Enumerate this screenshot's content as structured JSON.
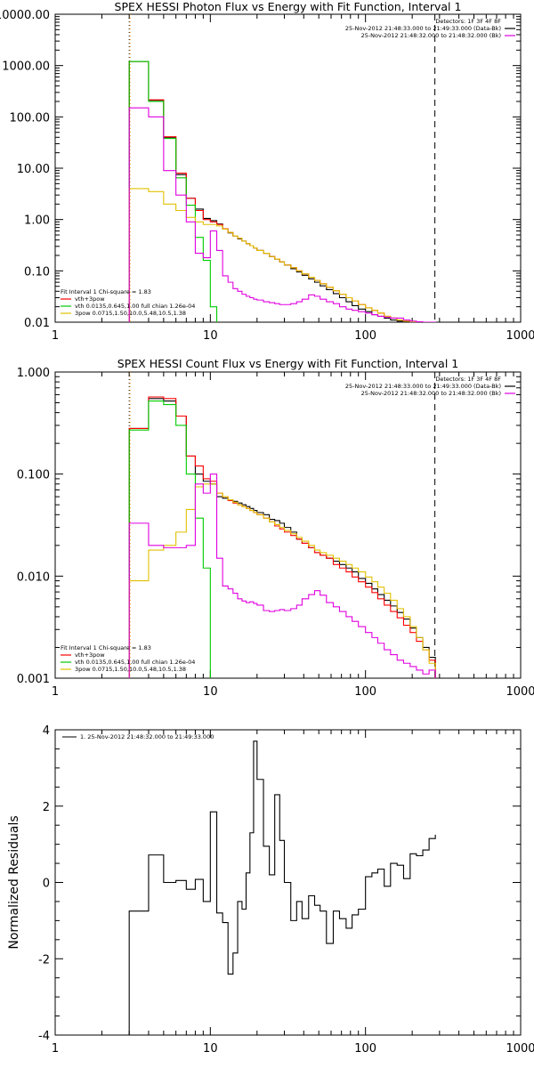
{
  "colors": {
    "background": "#ffffff",
    "axes": "#000000",
    "total": "#000000",
    "background_series": "#e000e0",
    "model": "#ff0000",
    "vth": "#00cc00",
    "powerlaw": "#e0c000",
    "marker_start": "#ff8c00"
  },
  "chart_data": [
    {
      "type": "line",
      "name": "photon-flux",
      "title": "SPEX HESSI Photon Flux vs Energy with Fit Function, Interval 1",
      "xlabel": "",
      "ylabel": "",
      "xlog": true,
      "ylog": true,
      "xlim": [
        1,
        1000
      ],
      "ylim": [
        0.01,
        10000
      ],
      "xticks": [
        1,
        10,
        100,
        1000
      ],
      "xtick_labels": [
        "1",
        "10",
        "100",
        "1000"
      ],
      "yticks": [
        0.01,
        0.1,
        1,
        10,
        100,
        1000,
        10000
      ],
      "ytick_labels": [
        "0.01",
        "0.10",
        "1.00",
        "10.00",
        "100.00",
        "1000.00",
        "10000.00"
      ],
      "vlines": [
        {
          "x": 3,
          "style": "dotted",
          "color": "#000000"
        },
        {
          "x": 3,
          "style": "dotted",
          "color": "#ff8c00"
        },
        {
          "x": 280,
          "style": "dashed",
          "color": "#000000"
        }
      ],
      "legend_top": [
        "Detectors: 1F 3F 4F 8F",
        "25-Nov-2012 21:48:33.000 to 21:49:33.000 (Data-Bk)",
        "25-Nov-2012 21:48:32.000 to 21:48:32.000 (Bk)"
      ],
      "legend_top_colors": [
        "#000000",
        "#000000",
        "#e000e0"
      ],
      "legend_bottom": [
        "Fit Interval 1    Chi-square = 1.83",
        "vth+3pow",
        "vth 0.0135,0.645,1.00  full chian 1.26e-04",
        "3pow 0.0715,1.50,10.0,5.48,10.5,1.38"
      ],
      "legend_bottom_colors": [
        "#000000",
        "#ff0000",
        "#00cc00",
        "#e0c000"
      ],
      "edges": [
        3,
        4,
        5,
        6,
        7,
        8,
        9,
        10,
        11,
        12,
        13,
        14,
        15,
        16,
        17,
        18,
        19,
        20,
        22,
        24,
        26,
        28,
        30,
        33,
        36,
        39,
        43,
        47,
        51,
        56,
        62,
        68,
        75,
        82,
        90,
        100,
        110,
        120,
        132,
        145,
        160,
        176,
        194,
        213,
        234,
        257,
        282
      ],
      "series": [
        {
          "key": "total",
          "color": "#000000",
          "values": [
            1200,
            210,
            40,
            7.5,
            2.6,
            1.6,
            1.05,
            0.95,
            0.82,
            0.65,
            0.55,
            0.48,
            0.42,
            0.38,
            0.34,
            0.31,
            0.28,
            0.25,
            0.22,
            0.19,
            0.17,
            0.15,
            0.13,
            0.11,
            0.095,
            0.082,
            0.07,
            0.06,
            0.051,
            0.043,
            0.036,
            0.03,
            0.025,
            0.021,
            0.018,
            0.016,
            0.014,
            0.013,
            0.012,
            0.011,
            0.0105,
            0.0102,
            0.0101,
            0.01,
            0.01,
            0.01
          ]
        },
        {
          "key": "model",
          "color": "#ff0000",
          "values": [
            1200,
            215,
            41,
            8,
            2.6,
            1.5,
            1.0,
            0.9,
            0.8,
            0.66,
            0.56,
            0.48,
            0.43,
            0.38,
            0.34,
            0.31,
            0.28,
            0.25,
            0.22,
            0.19,
            0.17,
            0.15,
            0.13,
            0.115,
            0.1,
            0.087,
            0.075,
            0.065,
            0.056,
            0.048,
            0.041,
            0.035,
            0.03,
            0.026,
            0.022,
            0.019,
            0.017,
            0.015,
            0.013,
            0.012,
            0.011,
            0.0105,
            0.0102,
            0.01,
            0.01,
            0.01
          ]
        },
        {
          "key": "vth",
          "color": "#00cc00",
          "values": [
            1200,
            200,
            38,
            6.5,
            1.9,
            0.45,
            0.16,
            0.02,
            0.009,
            0.009,
            0.009,
            0.009,
            0.009,
            0.009,
            0.009,
            0.009,
            0.009,
            0.009,
            0.009,
            0.009,
            0.009,
            0.009,
            0.009,
            0.009,
            0.009,
            0.009,
            0.009,
            0.009,
            0.009,
            0.009,
            0.009,
            0.009,
            0.009,
            0.009,
            0.009,
            0.009,
            0.009,
            0.009,
            0.009,
            0.009,
            0.009,
            0.009,
            0.009,
            0.009,
            0.009,
            0.009
          ]
        },
        {
          "key": "powerlaw",
          "color": "#e0c000",
          "values": [
            4,
            3.5,
            2,
            1.5,
            1.1,
            0.9,
            0.8,
            0.8,
            0.75,
            0.65,
            0.56,
            0.48,
            0.43,
            0.38,
            0.34,
            0.31,
            0.28,
            0.25,
            0.22,
            0.19,
            0.17,
            0.15,
            0.13,
            0.115,
            0.1,
            0.087,
            0.075,
            0.065,
            0.056,
            0.048,
            0.041,
            0.035,
            0.03,
            0.026,
            0.022,
            0.019,
            0.017,
            0.015,
            0.013,
            0.012,
            0.011,
            0.0105,
            0.0102,
            0.01,
            0.01,
            0.01
          ]
        },
        {
          "key": "background",
          "color": "#e000e0",
          "values": [
            150,
            100,
            9,
            3,
            0.9,
            0.22,
            0.18,
            0.6,
            0.25,
            0.08,
            0.06,
            0.045,
            0.04,
            0.035,
            0.032,
            0.03,
            0.028,
            0.027,
            0.025,
            0.024,
            0.023,
            0.022,
            0.022,
            0.023,
            0.025,
            0.028,
            0.034,
            0.032,
            0.028,
            0.025,
            0.023,
            0.02,
            0.018,
            0.017,
            0.016,
            0.015,
            0.014,
            0.013,
            0.0125,
            0.012,
            0.012,
            0.011,
            0.0105,
            0.0102,
            0.01,
            0.01
          ]
        }
      ]
    },
    {
      "type": "line",
      "name": "count-flux",
      "title": "SPEX HESSI Count Flux vs Energy with Fit Function, Interval 1",
      "xlabel": "",
      "ylabel": "",
      "xlog": true,
      "ylog": true,
      "xlim": [
        1,
        1000
      ],
      "ylim": [
        0.001,
        1
      ],
      "xticks": [
        1,
        10,
        100,
        1000
      ],
      "xtick_labels": [
        "1",
        "10",
        "100",
        "1000"
      ],
      "yticks": [
        0.001,
        0.01,
        0.1,
        1
      ],
      "ytick_labels": [
        "0.001",
        "0.010",
        "0.100",
        "1.000"
      ],
      "vlines": [
        {
          "x": 3,
          "style": "dotted",
          "color": "#000000"
        },
        {
          "x": 3,
          "style": "dotted",
          "color": "#ff8c00"
        },
        {
          "x": 280,
          "style": "dashed",
          "color": "#000000"
        }
      ],
      "legend_top": [
        "Detectors: 1F 3F 4F 8F",
        "25-Nov-2012 21:48:33.000 to 21:49:33.000 (Data-Bk)",
        "25-Nov-2012 21:48:32.000 to 21:48:32.000 (Bk)"
      ],
      "legend_top_colors": [
        "#000000",
        "#000000",
        "#e000e0"
      ],
      "legend_bottom": [
        "Fit Interval 1    Chi-square = 1.83",
        "vth+3pow",
        "vth 0.0135,0.645,1.00  full chian 1.26e-04",
        "3pow 0.0715,1.50,10.0,5.48,10.5,1.38"
      ],
      "legend_bottom_colors": [
        "#000000",
        "#ff0000",
        "#00cc00",
        "#e0c000"
      ],
      "edges": [
        3,
        4,
        5,
        6,
        7,
        8,
        9,
        10,
        11,
        12,
        13,
        14,
        15,
        16,
        17,
        18,
        19,
        20,
        22,
        24,
        26,
        28,
        30,
        33,
        36,
        39,
        43,
        47,
        51,
        56,
        62,
        68,
        75,
        82,
        90,
        100,
        110,
        120,
        132,
        145,
        160,
        176,
        194,
        213,
        234,
        257,
        282
      ],
      "series": [
        {
          "key": "total",
          "color": "#000000",
          "values": [
            0.28,
            0.55,
            0.52,
            0.37,
            0.15,
            0.1,
            0.085,
            0.08,
            0.06,
            0.058,
            0.056,
            0.054,
            0.052,
            0.05,
            0.048,
            0.046,
            0.044,
            0.042,
            0.04,
            0.036,
            0.035,
            0.033,
            0.03,
            0.027,
            0.023,
            0.021,
            0.019,
            0.017,
            0.016,
            0.015,
            0.014,
            0.013,
            0.012,
            0.011,
            0.0095,
            0.0085,
            0.0075,
            0.0066,
            0.0058,
            0.0051,
            0.0044,
            0.0038,
            0.0031,
            0.0025,
            0.002,
            0.0016
          ]
        },
        {
          "key": "model",
          "color": "#ff0000",
          "values": [
            0.28,
            0.57,
            0.55,
            0.37,
            0.15,
            0.12,
            0.09,
            0.085,
            0.065,
            0.06,
            0.055,
            0.052,
            0.05,
            0.048,
            0.046,
            0.044,
            0.042,
            0.04,
            0.037,
            0.034,
            0.031,
            0.029,
            0.027,
            0.025,
            0.023,
            0.021,
            0.019,
            0.017,
            0.016,
            0.015,
            0.013,
            0.012,
            0.011,
            0.0098,
            0.0088,
            0.0078,
            0.0069,
            0.006,
            0.0052,
            0.0045,
            0.0039,
            0.0033,
            0.0028,
            0.0023,
            0.0019,
            0.0015
          ]
        },
        {
          "key": "vth",
          "color": "#00cc00",
          "values": [
            0.27,
            0.52,
            0.48,
            0.3,
            0.1,
            0.037,
            0.012,
            0.0008,
            0.0008,
            0.0008,
            0.0008,
            0.0008,
            0.0008,
            0.0008,
            0.0008,
            0.0008,
            0.0008,
            0.0008,
            0.0008,
            0.0008,
            0.0008,
            0.0008,
            0.0008,
            0.0008,
            0.0008,
            0.0008,
            0.0008,
            0.0008,
            0.0008,
            0.0008,
            0.0008,
            0.0008,
            0.0008,
            0.0008,
            0.0008,
            0.0008,
            0.0008,
            0.0008,
            0.0008,
            0.0008,
            0.0008,
            0.0008,
            0.0008,
            0.0008,
            0.0008,
            0.0008
          ]
        },
        {
          "key": "powerlaw",
          "color": "#e0c000",
          "values": [
            0.009,
            0.018,
            0.02,
            0.027,
            0.045,
            0.075,
            0.08,
            0.08,
            0.065,
            0.06,
            0.056,
            0.053,
            0.05,
            0.048,
            0.046,
            0.044,
            0.042,
            0.04,
            0.037,
            0.034,
            0.032,
            0.03,
            0.028,
            0.026,
            0.024,
            0.022,
            0.02,
            0.018,
            0.017,
            0.016,
            0.015,
            0.014,
            0.013,
            0.012,
            0.011,
            0.0098,
            0.0088,
            0.0078,
            0.0068,
            0.0058,
            0.0048,
            0.004,
            0.0032,
            0.0025,
            0.0019,
            0.0014
          ]
        },
        {
          "key": "background",
          "color": "#e000e0",
          "values": [
            0.033,
            0.02,
            0.019,
            0.019,
            0.02,
            0.08,
            0.065,
            0.1,
            0.015,
            0.008,
            0.0075,
            0.0068,
            0.006,
            0.0057,
            0.0055,
            0.0056,
            0.0054,
            0.0052,
            0.0046,
            0.0045,
            0.0046,
            0.0047,
            0.0046,
            0.0048,
            0.0052,
            0.006,
            0.0066,
            0.0072,
            0.0065,
            0.0055,
            0.005,
            0.0045,
            0.004,
            0.0036,
            0.0032,
            0.0028,
            0.0025,
            0.0022,
            0.0019,
            0.0017,
            0.0015,
            0.0014,
            0.0013,
            0.0012,
            0.0011,
            0.0012
          ]
        }
      ]
    },
    {
      "type": "line",
      "name": "residuals",
      "title": "",
      "xlabel": "",
      "ylabel": "Normalized Residuals",
      "xlog": true,
      "ylog": false,
      "xlim": [
        1,
        1000
      ],
      "ylim": [
        -4,
        4
      ],
      "xticks": [
        1,
        10,
        100,
        1000
      ],
      "xtick_labels": [
        "1",
        "10",
        "100",
        "1000"
      ],
      "yticks": [
        -4,
        -2,
        0,
        2,
        4
      ],
      "ytick_labels": [
        "-4",
        "-2",
        "0",
        "2",
        "4"
      ],
      "legend_top": [
        "1. 25-Nov-2012 21:48:32.000 to 21:49:33.000"
      ],
      "edges": [
        3,
        4,
        5,
        6,
        7,
        8,
        9,
        10,
        11,
        12,
        13,
        14,
        15,
        16,
        17,
        18,
        19,
        20,
        22,
        24,
        26,
        28,
        30,
        33,
        36,
        39,
        43,
        47,
        51,
        56,
        62,
        68,
        75,
        82,
        90,
        100,
        110,
        120,
        132,
        145,
        160,
        176,
        194,
        213,
        234,
        257,
        282
      ],
      "series": [
        {
          "key": "residuals",
          "color": "#000000",
          "values": [
            -0.75,
            0.72,
            0.0,
            0.05,
            -0.18,
            0.08,
            -0.5,
            1.85,
            -0.8,
            -1.05,
            -2.4,
            -1.85,
            -0.5,
            -0.7,
            0.25,
            1.3,
            3.7,
            2.7,
            0.95,
            0.2,
            2.3,
            1.1,
            0.0,
            -1.0,
            -0.5,
            -0.95,
            -0.35,
            -0.6,
            -0.75,
            -1.6,
            -0.75,
            -0.95,
            -1.2,
            -0.85,
            -0.7,
            0.15,
            0.25,
            0.35,
            -0.1,
            0.5,
            0.45,
            0.1,
            0.75,
            0.7,
            0.85,
            1.15,
            1.25
          ]
        }
      ]
    }
  ]
}
